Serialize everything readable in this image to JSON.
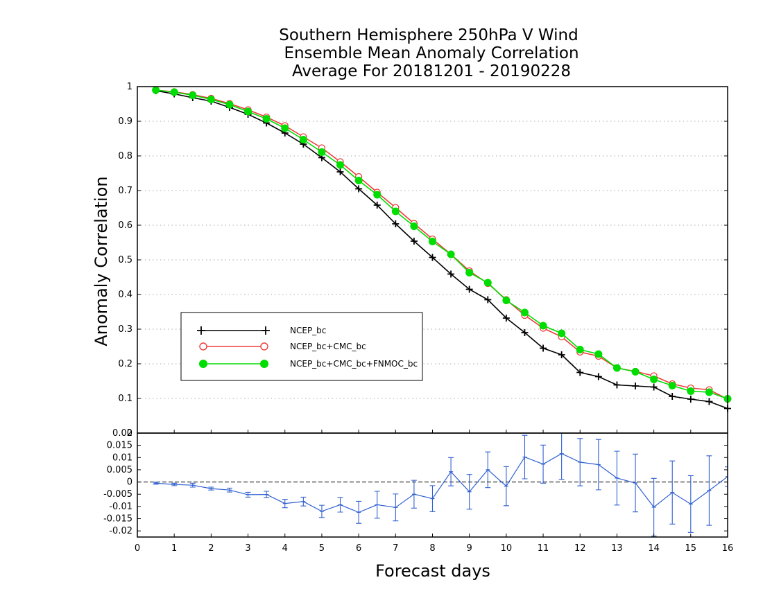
{
  "title_lines": [
    "Southern Hemisphere 250hPa V Wind",
    "Ensemble Mean Anomaly Correlation",
    "Average For 20181201 - 20190228"
  ],
  "colors": {
    "ncep": "#000000",
    "ncep_cmc": "#ee3b3b",
    "ncep_cmc_fnmoc": "#00dd00",
    "diff": "#3060d0"
  },
  "chart_data": [
    {
      "type": "line",
      "xlabel": "Forecast days",
      "ylabel": "Anomaly Correlation",
      "ylim": [
        0,
        1
      ],
      "xlim": [
        0,
        16
      ],
      "grid": true,
      "legend_position": "middle-left",
      "yticks": [
        "0",
        "0.1",
        "0.2",
        "0.3",
        "0.4",
        "0.5",
        "0.6",
        "0.7",
        "0.8",
        "0.9",
        "1"
      ],
      "x": [
        0.5,
        1,
        1.5,
        2,
        2.5,
        3,
        3.5,
        4,
        4.5,
        5,
        5.5,
        6,
        6.5,
        7,
        7.5,
        8,
        8.5,
        9,
        9.5,
        10,
        10.5,
        11,
        11.5,
        12,
        12.5,
        13,
        13.5,
        14,
        14.5,
        15,
        15.5,
        16
      ],
      "series": [
        {
          "name": "NCEP_bc",
          "marker": "plus",
          "values": [
            0.988,
            0.979,
            0.968,
            0.958,
            0.94,
            0.92,
            0.895,
            0.866,
            0.834,
            0.795,
            0.754,
            0.705,
            0.658,
            0.604,
            0.554,
            0.507,
            0.459,
            0.415,
            0.385,
            0.332,
            0.29,
            0.245,
            0.226,
            0.175,
            0.163,
            0.139,
            0.136,
            0.133,
            0.106,
            0.098,
            0.091,
            0.071
          ]
        },
        {
          "name": "NCEP_bc+CMC_bc",
          "marker": "circle-open",
          "values": [
            0.99,
            0.985,
            0.977,
            0.966,
            0.951,
            0.933,
            0.912,
            0.887,
            0.855,
            0.823,
            0.783,
            0.74,
            0.695,
            0.651,
            0.605,
            0.56,
            0.516,
            0.468,
            0.432,
            0.385,
            0.34,
            0.303,
            0.278,
            0.234,
            0.222,
            0.188,
            0.178,
            0.165,
            0.142,
            0.13,
            0.125,
            0.098
          ]
        },
        {
          "name": "NCEP_bc+CMC_bc+FNMOC_bc",
          "marker": "circle-filled",
          "values": [
            0.99,
            0.984,
            0.975,
            0.963,
            0.948,
            0.928,
            0.907,
            0.88,
            0.847,
            0.811,
            0.774,
            0.729,
            0.688,
            0.64,
            0.597,
            0.553,
            0.516,
            0.463,
            0.434,
            0.383,
            0.348,
            0.31,
            0.288,
            0.241,
            0.228,
            0.188,
            0.177,
            0.155,
            0.137,
            0.121,
            0.118,
            0.099
          ]
        }
      ]
    },
    {
      "type": "line",
      "description_role": "difference with error bars",
      "xlabel": "Forecast days",
      "ylabel": "",
      "ylim": [
        -0.0225,
        0.02
      ],
      "xlim": [
        0,
        16
      ],
      "reference_line": 0,
      "yticks": [
        "-0.02",
        "-0.015",
        "-0.01",
        "-0.005",
        "0",
        "0.005",
        "0.01",
        "0.015",
        "0.02"
      ],
      "xticks": [
        "0",
        "1",
        "2",
        "3",
        "4",
        "5",
        "6",
        "7",
        "8",
        "9",
        "10",
        "11",
        "12",
        "13",
        "14",
        "15",
        "16"
      ],
      "x": [
        0.5,
        1,
        1.5,
        2,
        2.5,
        3,
        3.5,
        4,
        4.5,
        5,
        5.5,
        6,
        6.5,
        7,
        7.5,
        8,
        8.5,
        9,
        9.5,
        10,
        10.5,
        11,
        11.5,
        12,
        12.5,
        13,
        13.5,
        14,
        14.5,
        15,
        15.5,
        16
      ],
      "values": [
        -0.0005,
        -0.001,
        -0.0013,
        -0.0027,
        -0.0033,
        -0.0052,
        -0.0051,
        -0.0088,
        -0.008,
        -0.012,
        -0.0093,
        -0.0124,
        -0.0093,
        -0.0104,
        -0.005,
        -0.0068,
        0.0042,
        -0.004,
        0.005,
        -0.0017,
        0.0102,
        0.0073,
        0.0116,
        0.0081,
        0.0071,
        0.0016,
        -0.0004,
        -0.0103,
        -0.0043,
        -0.009,
        -0.0035,
        0.0022
      ],
      "errors": [
        0.0004,
        0.0005,
        0.0008,
        0.0006,
        0.0008,
        0.001,
        0.0013,
        0.0017,
        0.0018,
        0.0025,
        0.003,
        0.0045,
        0.0055,
        0.0055,
        0.0057,
        0.0053,
        0.0058,
        0.0071,
        0.0073,
        0.008,
        0.0089,
        0.0078,
        0.0106,
        0.0097,
        0.0103,
        0.011,
        0.0118,
        0.0118,
        0.0129,
        0.0116,
        0.0142,
        0.004
      ]
    }
  ]
}
